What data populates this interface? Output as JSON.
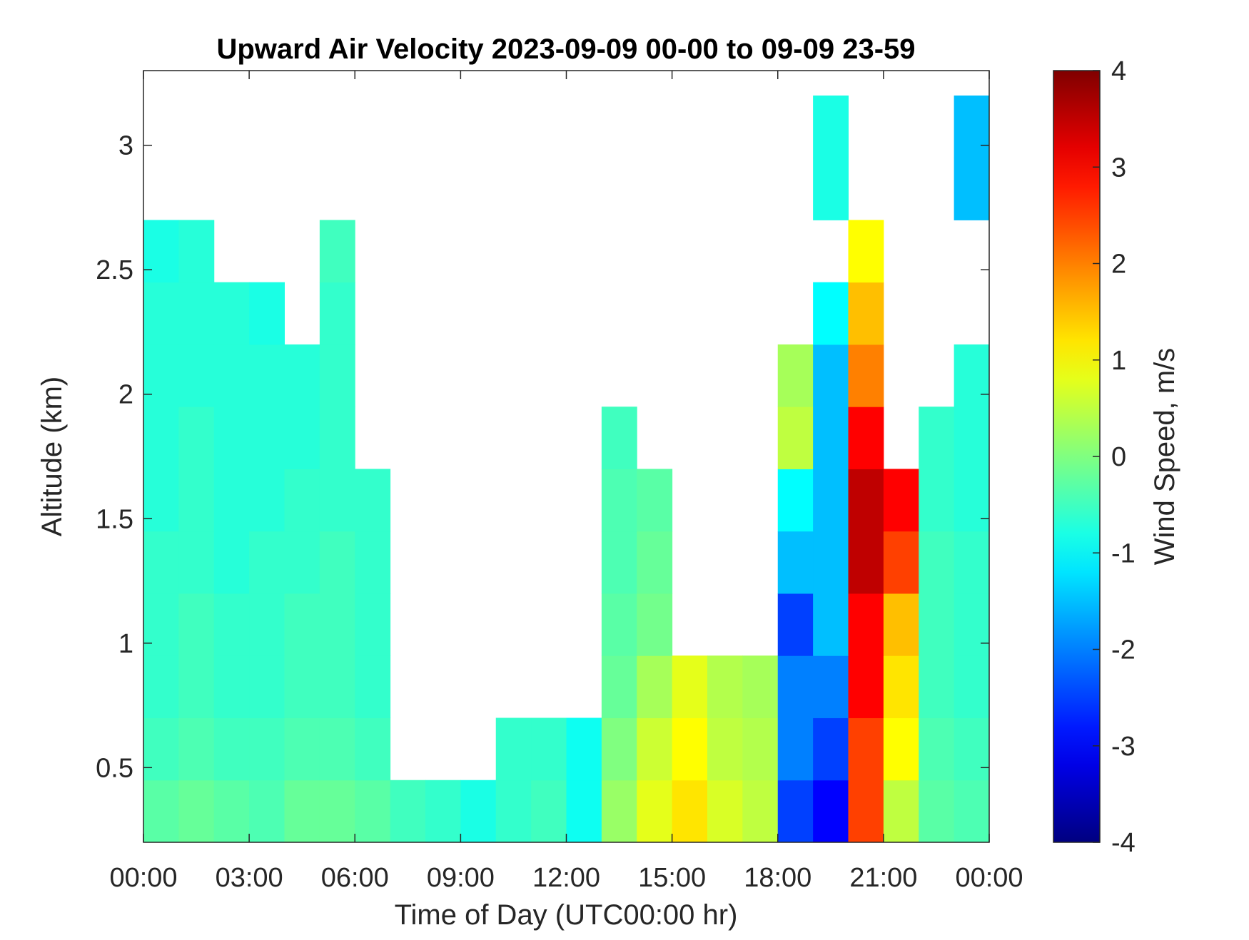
{
  "chart_data": {
    "type": "heatmap",
    "title": "Upward Air Velocity 2023-09-09 00-00 to 09-09 23-59",
    "x_label": "Time of Day (UTC00:00 hr)",
    "y_label": "Altitude (km)",
    "colorbar_label": "Wind Speed, m/s",
    "colormap": "jet",
    "x": [
      0.5,
      1.5,
      2.5,
      3.5,
      4.5,
      5.5,
      6.5,
      7.5,
      8.5,
      9.5,
      10.5,
      11.5,
      12.5,
      13.5,
      14.5,
      15.5,
      16.5,
      17.5,
      18.5,
      19.5,
      20.5,
      21.5,
      22.5,
      23.5
    ],
    "y": [
      0.325,
      0.575,
      0.825,
      1.075,
      1.325,
      1.575,
      1.825,
      2.075,
      2.325,
      2.575,
      2.825,
      3.075
    ],
    "z": [
      [
        -0.3,
        -0.2,
        -0.3,
        -0.4,
        -0.2,
        -0.2,
        -0.3,
        -0.5,
        -0.6,
        -0.8,
        -0.6,
        -0.5,
        -0.9,
        0.2,
        0.8,
        1.2,
        0.7,
        0.5,
        -2.5,
        -3,
        2.5,
        0.5,
        -0.3,
        -0.4
      ],
      [
        -0.5,
        -0.4,
        -0.5,
        -0.5,
        -0.4,
        -0.4,
        -0.5,
        null,
        null,
        null,
        -0.6,
        -0.6,
        -0.9,
        0,
        0.6,
        1,
        0.5,
        0.4,
        -2,
        -2.5,
        2.5,
        1,
        -0.4,
        -0.5
      ],
      [
        -0.6,
        -0.5,
        -0.6,
        -0.6,
        -0.5,
        -0.5,
        -0.6,
        null,
        null,
        null,
        null,
        null,
        null,
        -0.2,
        0.3,
        0.8,
        0.4,
        0.3,
        -2,
        -2,
        3,
        1.2,
        -0.5,
        -0.6
      ],
      [
        -0.6,
        -0.5,
        -0.6,
        -0.6,
        -0.5,
        -0.5,
        -0.6,
        null,
        null,
        null,
        null,
        null,
        null,
        -0.3,
        -0.1,
        null,
        null,
        null,
        -2.5,
        -1.5,
        3,
        1.5,
        -0.5,
        -0.6
      ],
      [
        -0.6,
        -0.6,
        -0.7,
        -0.6,
        -0.6,
        -0.5,
        -0.6,
        null,
        null,
        null,
        null,
        null,
        null,
        -0.4,
        -0.2,
        null,
        null,
        null,
        -1.5,
        -1.5,
        3.5,
        2.5,
        -0.5,
        -0.6
      ],
      [
        -0.7,
        -0.6,
        -0.7,
        -0.7,
        -0.6,
        -0.6,
        -0.6,
        null,
        null,
        null,
        null,
        null,
        null,
        -0.4,
        -0.3,
        null,
        null,
        null,
        -1,
        -1.5,
        3.5,
        3,
        -0.6,
        -0.7
      ],
      [
        -0.7,
        -0.6,
        -0.7,
        -0.7,
        -0.7,
        -0.6,
        null,
        null,
        null,
        null,
        null,
        null,
        null,
        -0.5,
        null,
        null,
        null,
        null,
        0.5,
        -1.5,
        3,
        null,
        -0.6,
        -0.7
      ],
      [
        -0.7,
        -0.7,
        -0.7,
        -0.7,
        -0.7,
        -0.6,
        null,
        null,
        null,
        null,
        null,
        null,
        null,
        null,
        null,
        null,
        null,
        null,
        0.3,
        -1.5,
        2,
        null,
        null,
        -0.7
      ],
      [
        -0.7,
        -0.7,
        -0.7,
        -0.8,
        null,
        -0.6,
        null,
        null,
        null,
        null,
        null,
        null,
        null,
        null,
        null,
        null,
        null,
        null,
        null,
        -1,
        1.5,
        null,
        null,
        null
      ],
      [
        -0.8,
        -0.7,
        null,
        null,
        null,
        -0.5,
        null,
        null,
        null,
        null,
        null,
        null,
        null,
        null,
        null,
        null,
        null,
        null,
        null,
        null,
        1,
        null,
        null,
        null
      ],
      [
        null,
        null,
        null,
        null,
        null,
        null,
        null,
        null,
        null,
        null,
        null,
        null,
        null,
        null,
        null,
        null,
        null,
        null,
        null,
        -0.8,
        null,
        null,
        null,
        -1.5
      ],
      [
        null,
        null,
        null,
        null,
        null,
        null,
        null,
        null,
        null,
        null,
        null,
        null,
        null,
        null,
        null,
        null,
        null,
        null,
        null,
        -0.8,
        null,
        null,
        null,
        -1.5
      ]
    ],
    "xlim": [
      0,
      24
    ],
    "xticks": [
      {
        "value": 0,
        "label": "00:00"
      },
      {
        "value": 3,
        "label": "03:00"
      },
      {
        "value": 6,
        "label": "06:00"
      },
      {
        "value": 9,
        "label": "09:00"
      },
      {
        "value": 12,
        "label": "12:00"
      },
      {
        "value": 15,
        "label": "15:00"
      },
      {
        "value": 18,
        "label": "18:00"
      },
      {
        "value": 21,
        "label": "21:00"
      },
      {
        "value": 24,
        "label": "00:00"
      }
    ],
    "ylim": [
      0.2,
      3.3
    ],
    "yticks": [
      0.5,
      1,
      1.5,
      2,
      2.5,
      3
    ],
    "clim": [
      -4,
      4
    ],
    "cticks": [
      -4,
      -3,
      -2,
      -1,
      0,
      1,
      2,
      3,
      4
    ]
  }
}
